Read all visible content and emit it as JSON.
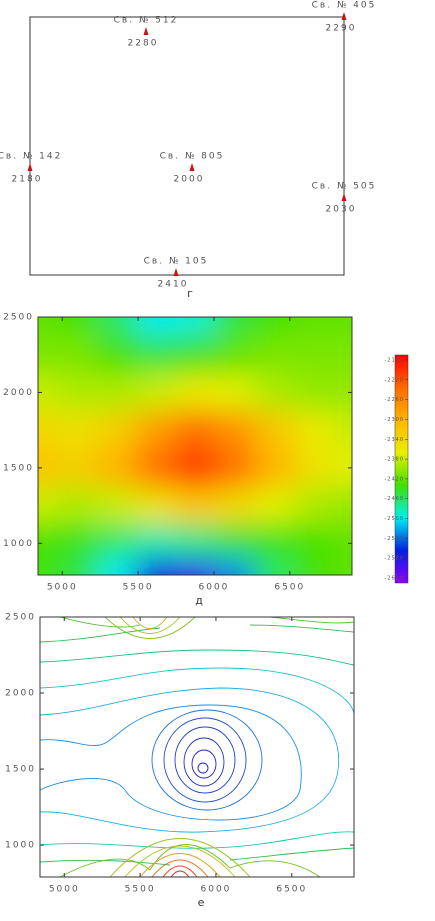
{
  "map": {
    "caption": "г",
    "wells": [
      {
        "label": "Св. № 512",
        "depth": 2280
      },
      {
        "label": "Св. № 405",
        "depth": 2290
      },
      {
        "label": "Св. № 142",
        "depth": 2180
      },
      {
        "label": "Св. № 805",
        "depth": 2000
      },
      {
        "label": "Св. № 505",
        "depth": 2030
      },
      {
        "label": "Св. № 105",
        "depth": 2410
      }
    ]
  },
  "chart_data": [
    {
      "type": "heatmap",
      "caption": "д",
      "xlim": [
        4840,
        6910
      ],
      "ylim": [
        790,
        2500
      ],
      "xticks": [
        5000,
        5500,
        6000,
        6500
      ],
      "yticks": [
        1000,
        1500,
        2000,
        2500
      ],
      "x": [
        4840,
        5100,
        5360,
        5620,
        5880,
        6140,
        6400,
        6660,
        6910
      ],
      "y": [
        2500,
        2250,
        2000,
        1750,
        1500,
        1250,
        1000,
        790
      ],
      "z": [
        [
          -2420,
          -2430,
          -2460,
          -2500,
          -2490,
          -2450,
          -2430,
          -2420,
          -2420
        ],
        [
          -2410,
          -2410,
          -2430,
          -2450,
          -2440,
          -2420,
          -2410,
          -2410,
          -2410
        ],
        [
          -2380,
          -2390,
          -2390,
          -2380,
          -2360,
          -2370,
          -2390,
          -2400,
          -2400
        ],
        [
          -2340,
          -2350,
          -2330,
          -2280,
          -2240,
          -2270,
          -2320,
          -2360,
          -2380
        ],
        [
          -2320,
          -2330,
          -2300,
          -2240,
          -2200,
          -2240,
          -2300,
          -2350,
          -2370
        ],
        [
          -2380,
          -2390,
          -2380,
          -2350,
          -2320,
          -2340,
          -2370,
          -2390,
          -2400
        ],
        [
          -2430,
          -2440,
          -2460,
          -2480,
          -2470,
          -2450,
          -2440,
          -2430,
          -2420
        ],
        [
          -2430,
          -2450,
          -2500,
          -2570,
          -2590,
          -2530,
          -2460,
          -2430,
          -2420
        ]
      ],
      "zlim": [
        -2630,
        -2170
      ],
      "colors": [
        "#ff0000",
        "#ff6a00",
        "#ffb400",
        "#e8f000",
        "#40e000",
        "#00f0f0",
        "#0020e0",
        "#9000ff"
      ],
      "colorbar_ticks": [
        -2180,
        -2220,
        -2260,
        -2300,
        -2340,
        -2380,
        -2420,
        -2460,
        -2500,
        -2540,
        -2580,
        -2620
      ]
    },
    {
      "type": "contour",
      "caption": "е",
      "xlim": [
        4840,
        6910
      ],
      "ylim": [
        790,
        2500
      ],
      "xticks": [
        5000,
        5500,
        6000,
        6500
      ],
      "yticks": [
        1000,
        1500,
        2000,
        2500
      ]
    }
  ]
}
